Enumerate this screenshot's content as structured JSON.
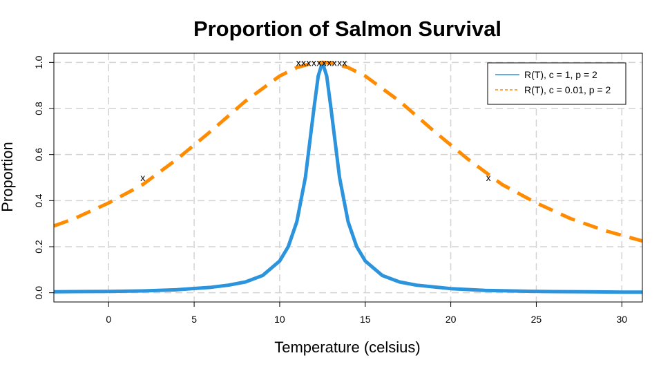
{
  "chart_data": {
    "type": "line",
    "title": "Proportion of Salmon Survival",
    "xlabel": "Temperature (celsius)",
    "ylabel": "Proportion",
    "xlim": [
      -3.2,
      31.2
    ],
    "ylim": [
      -0.04,
      1.04
    ],
    "x_ticks": [
      0,
      5,
      10,
      15,
      20,
      25,
      30
    ],
    "y_ticks": [
      0.0,
      0.2,
      0.4,
      0.6,
      0.8,
      1.0
    ],
    "x_tick_labels": [
      "0",
      "5",
      "10",
      "15",
      "20",
      "25",
      "30"
    ],
    "y_tick_labels": [
      "0.0",
      "0.2",
      "0.4",
      "0.6",
      "0.8",
      "1.0"
    ],
    "grid": true,
    "legend_position": "top-right",
    "series": [
      {
        "name": "R(T), c = 1, p = 2",
        "color": "#2b94dc",
        "style": "solid",
        "x": [
          -3.2,
          -2,
          0,
          2,
          4,
          6,
          7,
          8,
          9,
          10,
          10.5,
          11,
          11.5,
          12,
          12.25,
          12.5,
          12.75,
          13,
          13.5,
          14,
          14.5,
          15,
          16,
          17,
          18,
          20,
          22,
          24,
          26,
          28,
          30,
          31.2
        ],
        "y": [
          0.004,
          0.005,
          0.006,
          0.008,
          0.013,
          0.024,
          0.033,
          0.047,
          0.075,
          0.138,
          0.2,
          0.308,
          0.5,
          0.8,
          0.941,
          1.0,
          0.941,
          0.8,
          0.5,
          0.308,
          0.2,
          0.138,
          0.075,
          0.047,
          0.033,
          0.018,
          0.01,
          0.007,
          0.005,
          0.004,
          0.003,
          0.003
        ]
      },
      {
        "name": "R(T), c = 0.01, p = 2",
        "color": "#ff8c00",
        "style": "dashed",
        "x": [
          -3.2,
          -2,
          0,
          2,
          4,
          6,
          8,
          10,
          11,
          12,
          12.5,
          13,
          14,
          15,
          17,
          19,
          21,
          23,
          25,
          27,
          29,
          31.2
        ],
        "y": [
          0.29,
          0.322,
          0.39,
          0.47,
          0.58,
          0.703,
          0.832,
          0.941,
          0.978,
          0.998,
          1.0,
          0.998,
          0.978,
          0.941,
          0.832,
          0.703,
          0.58,
          0.47,
          0.39,
          0.322,
          0.27,
          0.225
        ]
      }
    ],
    "annotations": [
      {
        "label": "x",
        "x": 2.0,
        "y": 0.5
      },
      {
        "label": "x",
        "x": 22.2,
        "y": 0.5
      },
      {
        "label": "x",
        "x": 11.1,
        "y": 1.0
      },
      {
        "label": "x",
        "x": 11.4,
        "y": 1.0
      },
      {
        "label": "x",
        "x": 11.7,
        "y": 1.0
      },
      {
        "label": "x",
        "x": 12.0,
        "y": 1.0
      },
      {
        "label": "x",
        "x": 12.3,
        "y": 1.0
      },
      {
        "label": "x",
        "x": 12.6,
        "y": 1.0
      },
      {
        "label": "x",
        "x": 12.9,
        "y": 1.0
      },
      {
        "label": "x",
        "x": 13.2,
        "y": 1.0
      },
      {
        "label": "x",
        "x": 13.5,
        "y": 1.0
      },
      {
        "label": "x",
        "x": 13.8,
        "y": 1.0
      }
    ]
  }
}
